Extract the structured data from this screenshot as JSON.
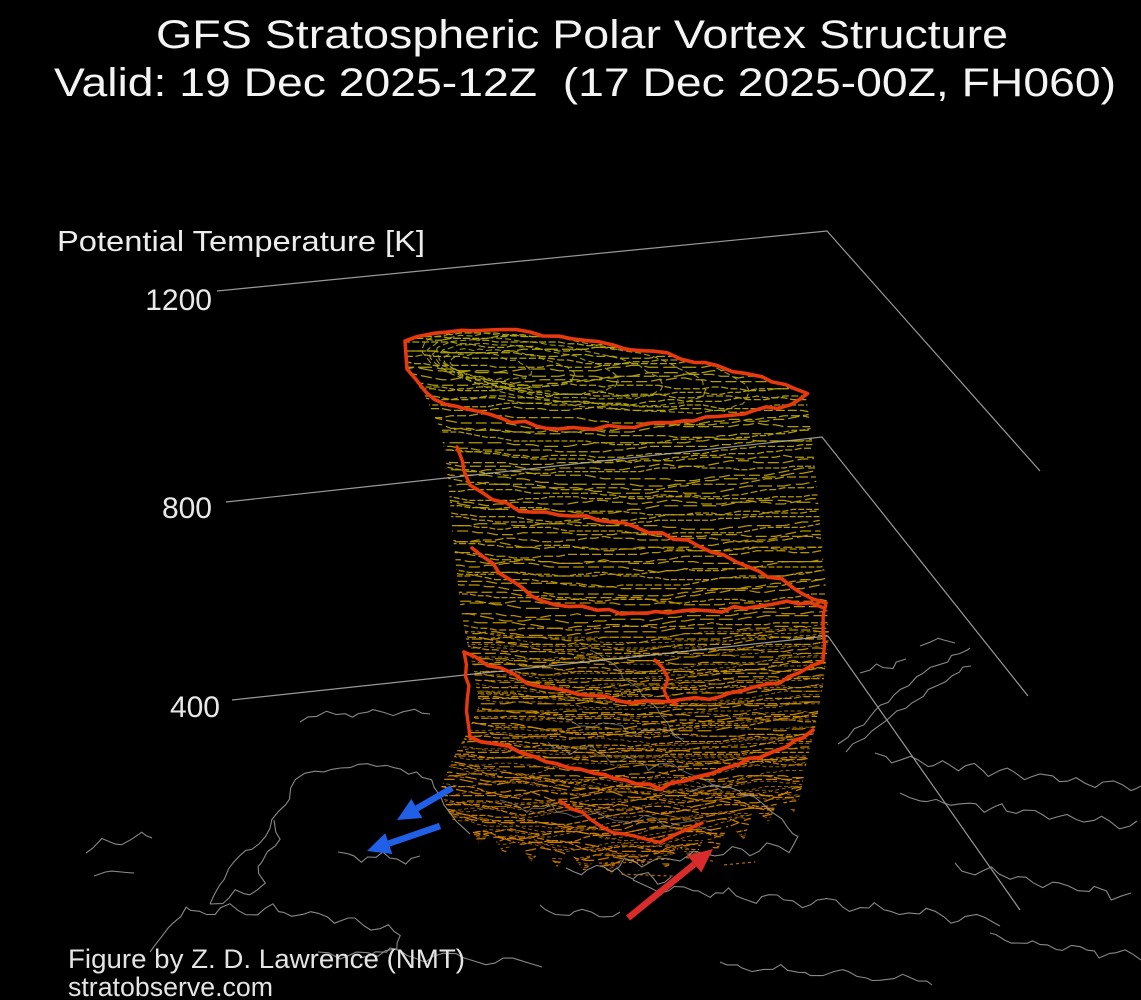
{
  "header": {
    "title": "GFS Stratospheric Polar Vortex Structure",
    "subtitle": "Valid: 19 Dec 2025-12Z  (17 Dec 2025-00Z, FH060)"
  },
  "axis": {
    "label": "Potential Temperature [K]",
    "ticks": [
      "1200",
      "800",
      "400"
    ]
  },
  "footer": {
    "credit": "Figure by Z. D. Lawrence (NMT)",
    "site": "stratobserve.com"
  },
  "colors": {
    "background": "#000000",
    "text": "#f4f4f4",
    "grid": "#b3b3b3",
    "coast": "#979797",
    "coast_dim": "#a8a8a8",
    "mesh_top": "#b3a90f",
    "mesh_mid": "#c49b02",
    "mesh_low": "#cd8a00",
    "mesh_bottom": "#d67a00",
    "vortex_ring": "#e8390e",
    "arrow_blue": "#2160e6",
    "arrow_red": "#d92b2b"
  },
  "chart_data": {
    "type": "line",
    "subtype": "3d_isosurface_wireframe",
    "model": "GFS",
    "field": "Stratospheric polar vortex edge structure",
    "title": "GFS Stratospheric Polar Vortex Structure",
    "valid_time": "19 Dec 2025-12Z",
    "initialization_time": "17 Dec 2025-00Z",
    "forecast_hour": "FH060",
    "z_axis": {
      "label": "Potential Temperature [K]",
      "ticks": [
        1200,
        800,
        400
      ],
      "tick_order": "top-to-bottom"
    },
    "surface_description": "Vertical stack of potential-temperature contour rings forming the polar vortex column; yellow wireframe at upper levels grading to orange at lower levels, with thick red-orange vortex-edge rings winding around the column at roughly five levels",
    "red_edge_rings": 5,
    "basemap": "Northern Hemisphere coastlines in gray, tilted polar perspective beneath the vortex column",
    "grid": "three sloped potential-temperature level lines (1200, 800, 400 K) forming a 3D box corner at upper right",
    "legend": "none",
    "annotations": [
      {
        "id": "blue-arrow-1",
        "shape": "arrow",
        "color_key": "arrow_blue",
        "direction": "pointing down-left toward vortex base (Alaska side)"
      },
      {
        "id": "blue-arrow-2",
        "shape": "arrow",
        "color_key": "arrow_blue",
        "direction": "pointing down-left toward vortex base (Alaska side)"
      },
      {
        "id": "red-arrow",
        "shape": "arrow",
        "color_key": "arrow_red",
        "direction": "pointing up-right toward vortex base (northern Europe side)"
      }
    ]
  }
}
